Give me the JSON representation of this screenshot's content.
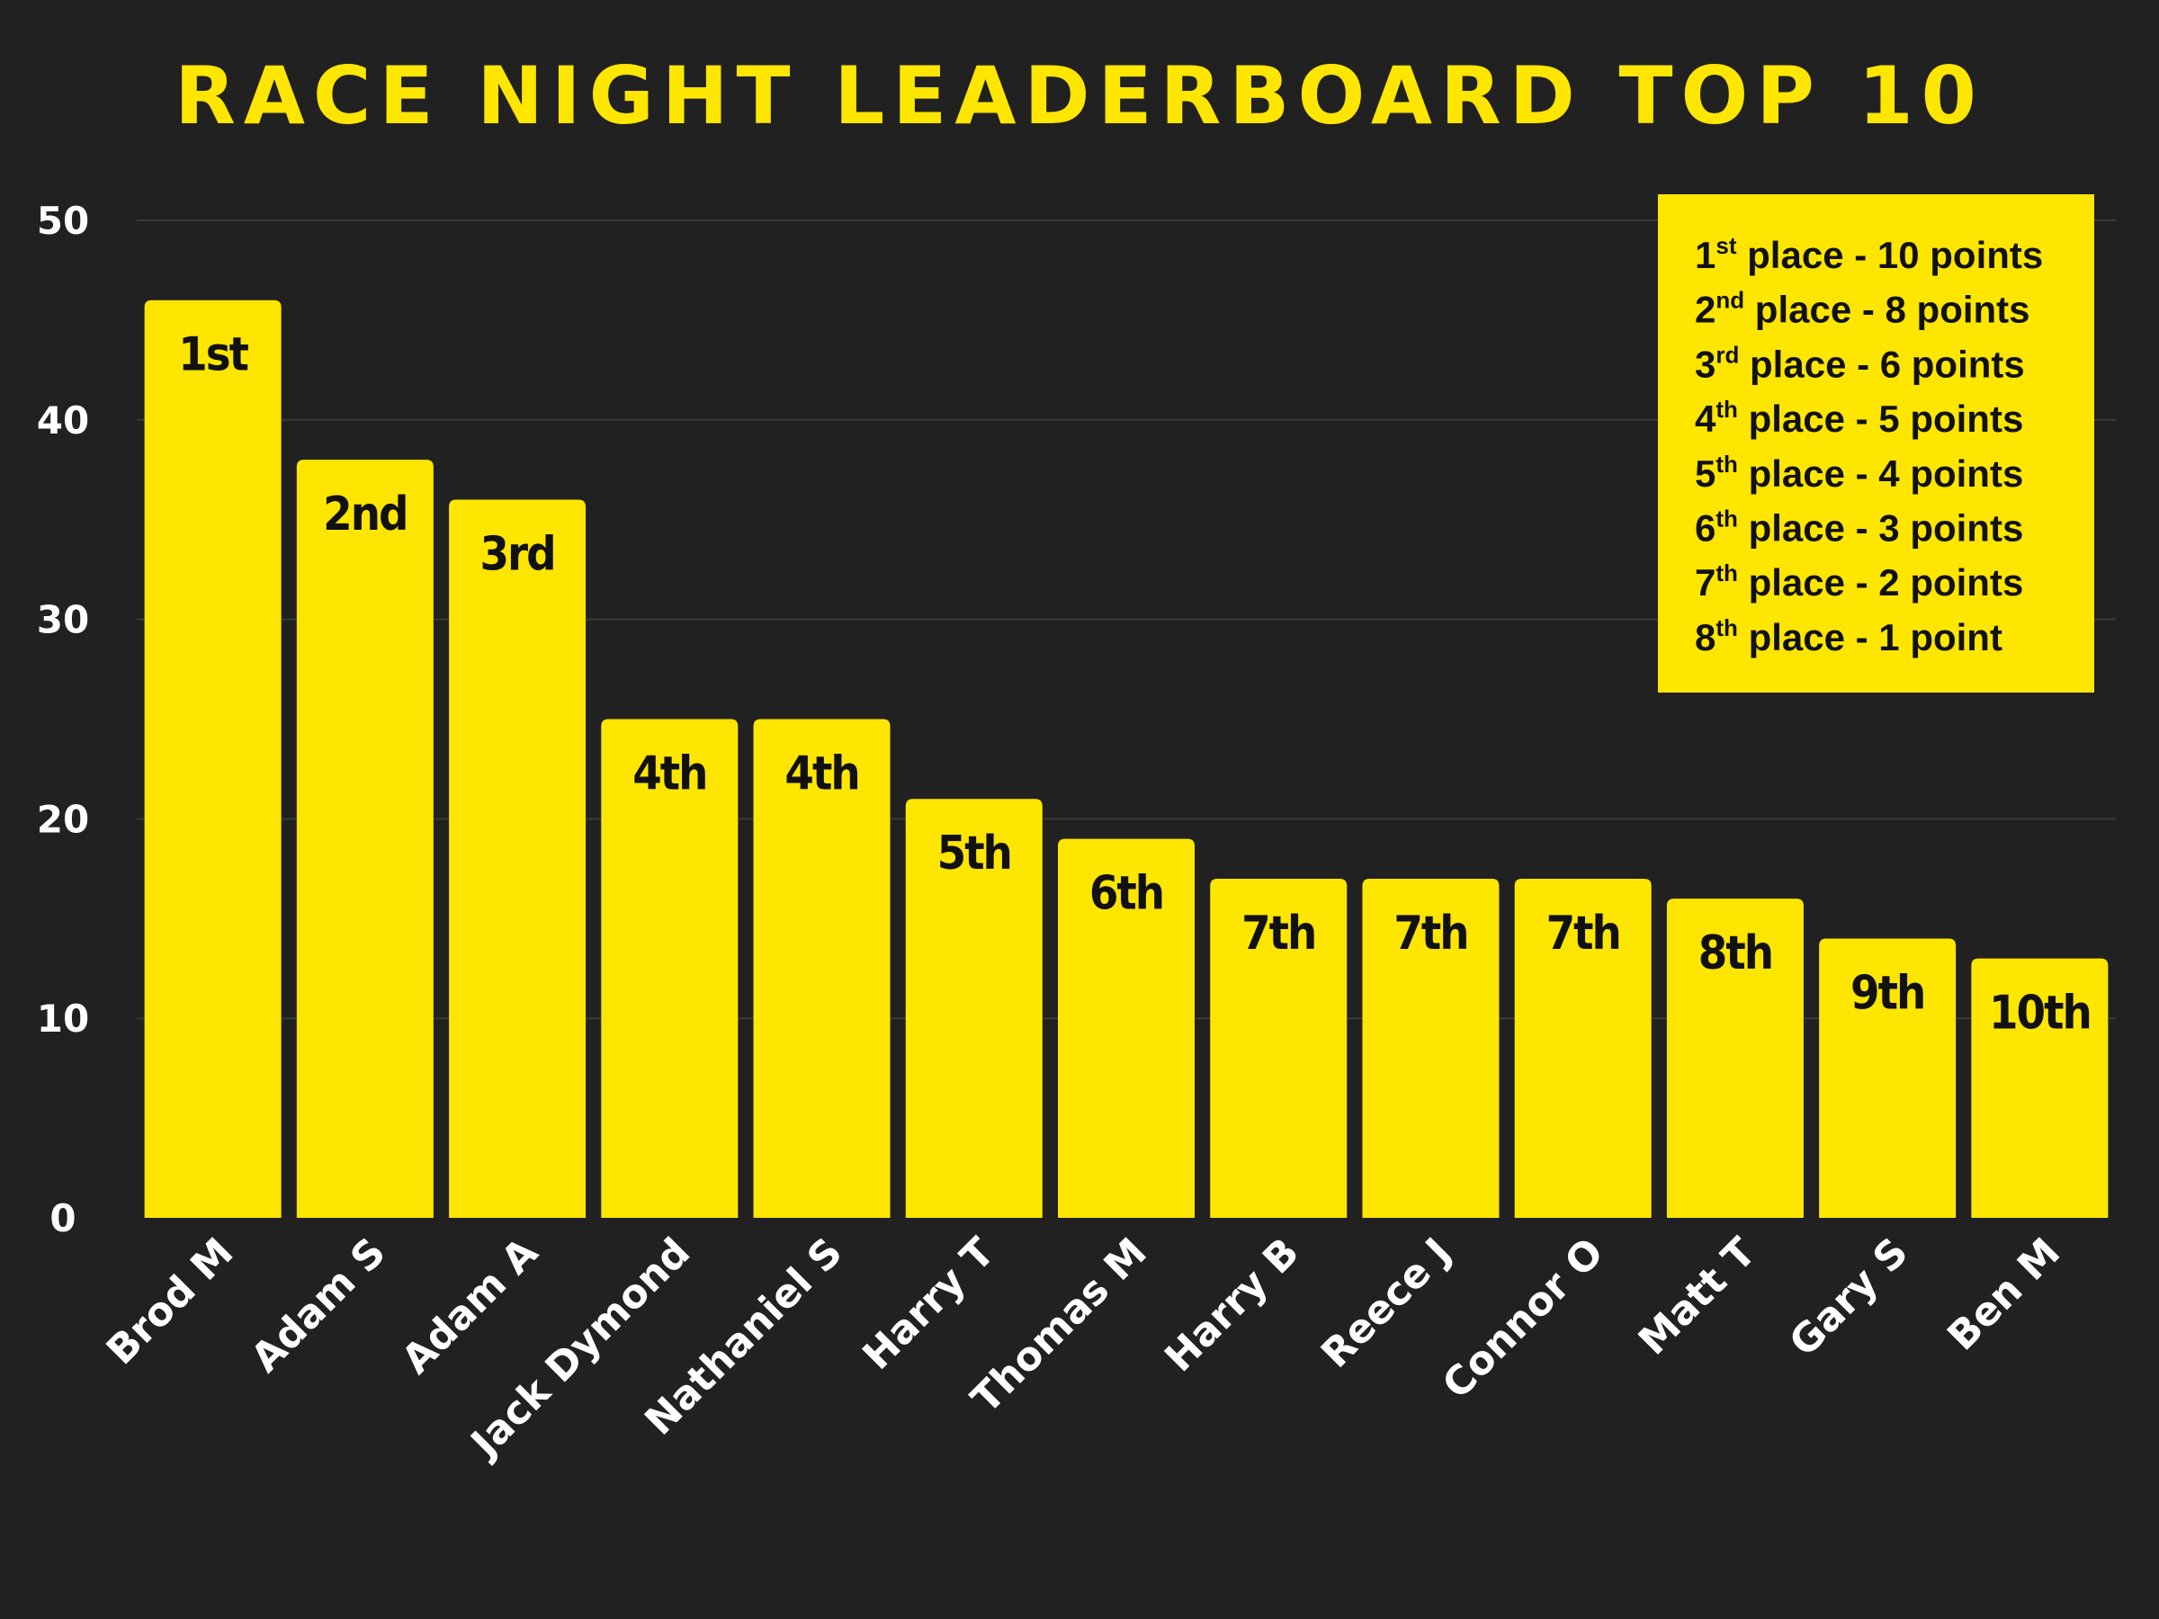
{
  "chart_data": {
    "type": "bar",
    "title": "RACE NIGHT LEADERBOARD TOP 10",
    "xlabel": "",
    "ylabel": "",
    "ylim": [
      0,
      50
    ],
    "yticks": [
      0,
      10,
      20,
      30,
      40,
      50
    ],
    "grid": true,
    "categories": [
      "Brod M",
      "Adam S",
      "Adam A",
      "Jack Dymond",
      "Nathaniel S",
      "Harry T",
      "Thomas M",
      "Harry B",
      "Reece J",
      "Connor O",
      "Matt T",
      "Gary S",
      "Ben M"
    ],
    "values": [
      46,
      38,
      36,
      25,
      25,
      21,
      19,
      17,
      17,
      17,
      16,
      14,
      13
    ],
    "data_labels": [
      "1st",
      "2nd",
      "3rd",
      "4th",
      "4th",
      "5th",
      "6th",
      "7th",
      "7th",
      "7th",
      "8th",
      "9th",
      "10th"
    ],
    "bar_color": "#FFE600",
    "background_color": "#212121",
    "legend": {
      "placement": "top-right",
      "entries": [
        {
          "num": "1",
          "suffix": "st",
          "text": " place - 10 points"
        },
        {
          "num": "2",
          "suffix": "nd",
          "text": " place - 8 points"
        },
        {
          "num": "3",
          "suffix": "rd",
          "text": " place - 6 points"
        },
        {
          "num": "4",
          "suffix": "th",
          "text": " place - 5 points"
        },
        {
          "num": "5",
          "suffix": "th",
          "text": " place - 4 points"
        },
        {
          "num": "6",
          "suffix": "th",
          "text": " place - 3 points"
        },
        {
          "num": "7",
          "suffix": "th",
          "text": " place - 2 points"
        },
        {
          "num": "8",
          "suffix": "th",
          "text": " place - 1 point"
        }
      ]
    }
  }
}
